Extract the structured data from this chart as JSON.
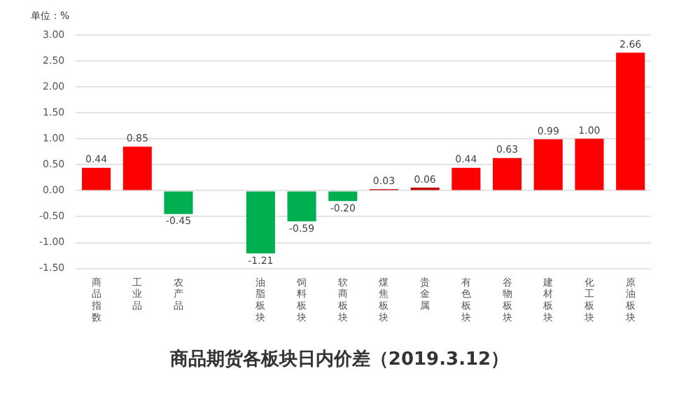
{
  "chart_data": {
    "type": "bar",
    "title": "商品期货各板块日内价差（2019.3.12）",
    "ylabel": "单位：%",
    "categories": [
      "商品指数",
      "工业品",
      "农产品",
      null,
      "油脂板块",
      "饲料板块",
      "软商板块",
      "煤焦板块",
      "贵金属",
      "有色板块",
      "谷物板块",
      "建材板块",
      "化工板块",
      "原油板块"
    ],
    "values": [
      0.44,
      0.85,
      -0.45,
      null,
      -1.21,
      -0.59,
      -0.2,
      0.03,
      0.06,
      0.44,
      0.63,
      0.99,
      1.0,
      2.66
    ],
    "value_labels": [
      "0.44",
      "0.85",
      "-0.45",
      null,
      "-1.21",
      "-0.59",
      "-0.20",
      "0.03",
      "0.06",
      "0.44",
      "0.63",
      "0.99",
      "1.00",
      "2.66"
    ],
    "colors": [
      "#ff0000",
      "#ff0000",
      "#00b050",
      null,
      "#00b050",
      "#00b050",
      "#00b050",
      "#c00000",
      "#c00000",
      "#ff0000",
      "#ff0000",
      "#ff0000",
      "#ff0000",
      "#ff0000"
    ],
    "ylim": [
      -1.5,
      3
    ],
    "yticks": [
      {
        "value": -1.5,
        "label": "-1.50"
      },
      {
        "value": -1,
        "label": "-1.00"
      },
      {
        "value": -0.5,
        "label": "-0.50"
      },
      {
        "value": 0,
        "label": "0.00"
      },
      {
        "value": 0.5,
        "label": "0.50"
      },
      {
        "value": 1,
        "label": "1.00"
      },
      {
        "value": 1.5,
        "label": "1.50"
      },
      {
        "value": 2,
        "label": "2.00"
      },
      {
        "value": 2.5,
        "label": "2.50"
      },
      {
        "value": 3,
        "label": "3.00"
      }
    ],
    "grid": "y",
    "legend": false
  }
}
